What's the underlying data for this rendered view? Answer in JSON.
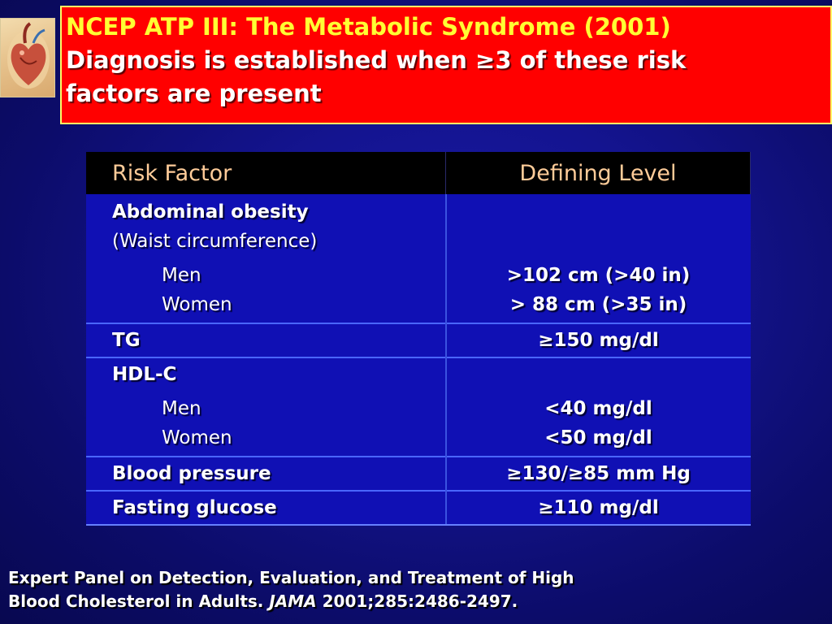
{
  "title": {
    "line1": "NCEP ATP III: The Metabolic Syndrome (2001)",
    "line2": "Diagnosis is established when ≥3 of these risk",
    "line3": "factors are present"
  },
  "table": {
    "headers": [
      "Risk Factor",
      "Defining Level"
    ],
    "abdominal": {
      "label": "Abdominal obesity",
      "sublabel": "(Waist circumference)",
      "men_label": "Men",
      "men_value": ">102 cm (>40 in)",
      "women_label": "Women",
      "women_value": "> 88 cm (>35 in)"
    },
    "tg": {
      "label": "TG",
      "value": "≥150 mg/dl"
    },
    "hdl": {
      "label": "HDL-C",
      "men_label": "Men",
      "men_value": "<40 mg/dl",
      "women_label": "Women",
      "women_value": "<50 mg/dl"
    },
    "bp": {
      "label": "Blood pressure",
      "value": "≥130/≥85 mm Hg"
    },
    "glucose": {
      "label": "Fasting glucose",
      "value": "≥110 mg/dl"
    }
  },
  "footer": {
    "line1": "Expert Panel on Detection, Evaluation, and Treatment of High",
    "line2_pre": "Blood Cholesterol in Adults. ",
    "journal": "JAMA",
    "line2_post": " 2001;285:2486-2497."
  }
}
